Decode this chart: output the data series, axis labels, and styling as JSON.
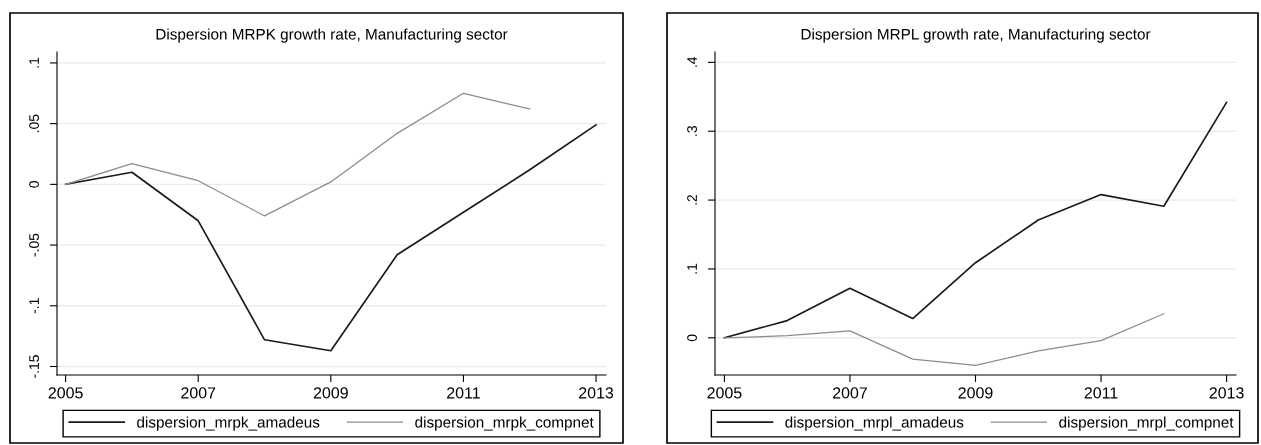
{
  "chart_data": [
    {
      "type": "line",
      "title": "Dispersion MRPK growth rate, Manufacturing sector",
      "x": [
        2005,
        2006,
        2007,
        2008,
        2009,
        2010,
        2011,
        2012,
        2013
      ],
      "series": [
        {
          "name": "dispersion_mrpk_amadeus",
          "color": "#1a1a1a",
          "values": [
            0,
            0.01,
            -0.03,
            -0.128,
            -0.137,
            -0.058,
            -0.023,
            0.012,
            0.049
          ]
        },
        {
          "name": "dispersion_mrpk_compnet",
          "color": "#8c8c8c",
          "values": [
            0,
            0.017,
            0.003,
            -0.026,
            0.002,
            0.042,
            0.075,
            0.062,
            null
          ]
        }
      ],
      "xlim": [
        2004.87,
        2013.15
      ],
      "ylim": [
        -0.157,
        0.109
      ],
      "xticks": [
        2005,
        2007,
        2009,
        2011,
        2013
      ],
      "yticks": [
        {
          "value": -0.15,
          "label": "-.15"
        },
        {
          "value": -0.1,
          "label": "-.1"
        },
        {
          "value": -0.05,
          "label": "-.05"
        },
        0,
        {
          "value": 0.05,
          "label": ".05"
        },
        {
          "value": 0.1,
          "label": ".1"
        }
      ],
      "grid": "y",
      "legend": "bottom",
      "marker": "none",
      "line_style": "solid"
    },
    {
      "type": "line",
      "title": "Dispersion MRPL growth rate, Manufacturing sector",
      "x": [
        2005,
        2006,
        2007,
        2008,
        2009,
        2010,
        2011,
        2012,
        2013
      ],
      "series": [
        {
          "name": "dispersion_mrpl_amadeus",
          "color": "#1a1a1a",
          "values": [
            0,
            0.025,
            0.072,
            0.028,
            0.109,
            0.171,
            0.208,
            0.191,
            0.342
          ]
        },
        {
          "name": "dispersion_mrpl_compnet",
          "color": "#8c8c8c",
          "values": [
            0,
            0.003,
            0.01,
            -0.031,
            -0.04,
            -0.019,
            -0.004,
            0.035,
            null
          ]
        }
      ],
      "xlim": [
        2004.85,
        2013.15
      ],
      "ylim": [
        -0.054,
        0.415
      ],
      "xticks": [
        2005,
        2007,
        2009,
        2011,
        2013
      ],
      "yticks": [
        0,
        {
          "value": 0.1,
          "label": ".1"
        },
        {
          "value": 0.2,
          "label": ".2"
        },
        {
          "value": 0.3,
          "label": ".3"
        },
        {
          "value": 0.4,
          "label": ".4"
        }
      ],
      "grid": "y",
      "legend": "bottom",
      "marker": "none",
      "line_style": "solid"
    }
  ]
}
